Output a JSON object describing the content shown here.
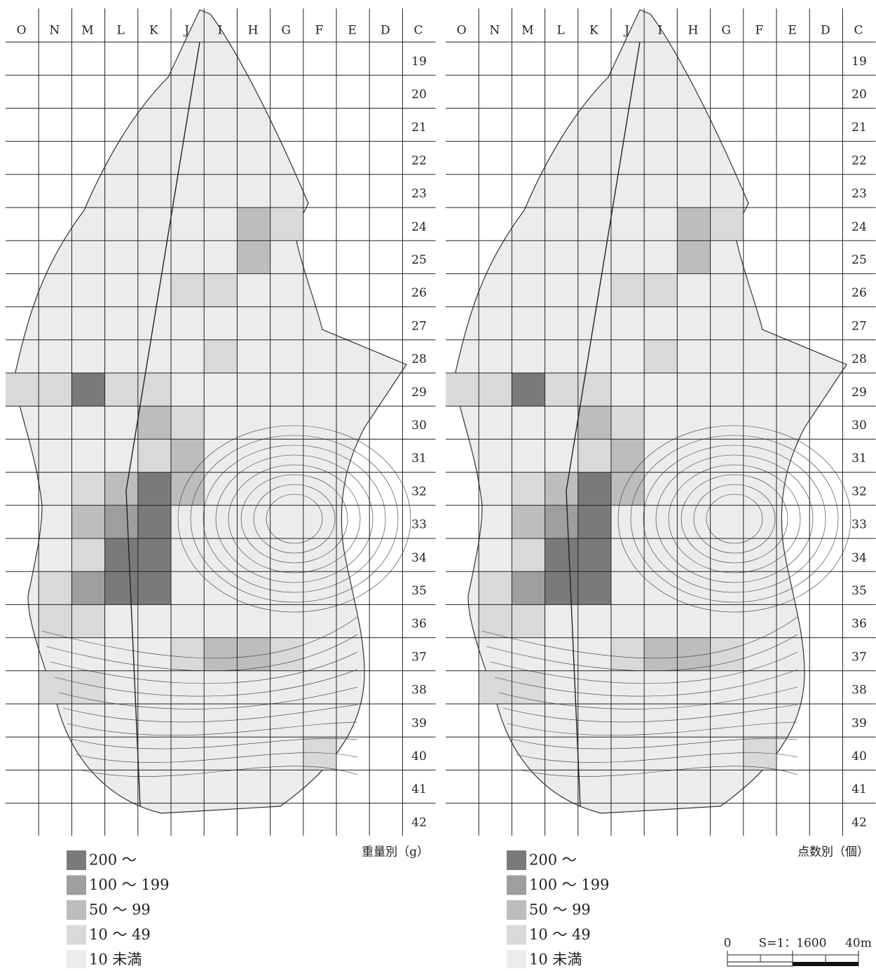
{
  "maps": [
    {
      "caption": "重量別（g）",
      "columns": [
        "O",
        "N",
        "M",
        "L",
        "K",
        "J",
        "I",
        "H",
        "G",
        "F",
        "E",
        "D",
        "C"
      ],
      "rows": [
        "19",
        "20",
        "21",
        "22",
        "23",
        "24",
        "25",
        "26",
        "27",
        "28",
        "29",
        "30",
        "31",
        "32",
        "33",
        "34",
        "35",
        "36",
        "37",
        "38",
        "39",
        "40",
        "41",
        "42"
      ],
      "legend": [
        {
          "label": "200 ～",
          "color": "#7a7a7a"
        },
        {
          "label": "100 ～ 199",
          "color": "#9e9e9e"
        },
        {
          "label": "50 ～ 99",
          "color": "#bdbdbd"
        },
        {
          "label": "10 ～ 49",
          "color": "#d9d9d9"
        },
        {
          "label": "10 未満",
          "color": "#ececec"
        }
      ]
    },
    {
      "caption": "点数別（個）",
      "columns": [
        "O",
        "N",
        "M",
        "L",
        "K",
        "J",
        "I",
        "H",
        "G",
        "F",
        "E",
        "D",
        "C"
      ],
      "rows": [
        "19",
        "20",
        "21",
        "22",
        "23",
        "24",
        "25",
        "26",
        "27",
        "28",
        "29",
        "30",
        "31",
        "32",
        "33",
        "34",
        "35",
        "36",
        "37",
        "38",
        "39",
        "40",
        "41",
        "42"
      ],
      "legend": [
        {
          "label": "200 ～",
          "color": "#7a7a7a"
        },
        {
          "label": "100 ～ 199",
          "color": "#9e9e9e"
        },
        {
          "label": "50 ～ 99",
          "color": "#bdbdbd"
        },
        {
          "label": "10 ～ 49",
          "color": "#d9d9d9"
        },
        {
          "label": "10 未満",
          "color": "#ececec"
        }
      ]
    }
  ],
  "scale": {
    "start": "0",
    "ratio": "S=1：1600",
    "end": "40m"
  }
}
